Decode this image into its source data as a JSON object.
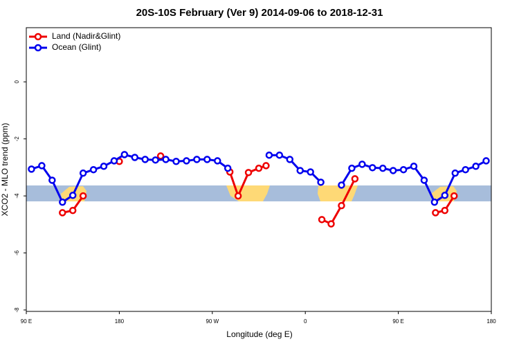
{
  "chart_data": {
    "type": "line",
    "title": "20S-10S February (Ver 9)   2014-09-06 to 2018-12-31",
    "x_label": "Longitude (deg E)",
    "y_label": "XCO2 - MLO trend (ppm)",
    "xlim": [
      90,
      540
    ],
    "ylim": [
      -8.05,
      1.9
    ],
    "xticks": [
      {
        "value": 90,
        "label": "90 E"
      },
      {
        "value": 180,
        "label": "180"
      },
      {
        "value": 270,
        "label": "90 W"
      },
      {
        "value": 360,
        "label": "0"
      },
      {
        "value": 450,
        "label": "90 E"
      },
      {
        "value": 540,
        "label": "180"
      }
    ],
    "yticks": [
      -8,
      -6,
      -4,
      -2,
      0
    ],
    "legend": "top-left",
    "series": [
      {
        "name": "Land (Nadir&Glint)",
        "color": "#ee0000",
        "x": [
          125,
          135,
          145,
          null,
          180,
          null,
          220,
          null,
          287,
          295,
          305,
          315,
          322,
          null,
          376,
          385,
          395,
          408,
          null,
          486,
          495,
          504
        ],
        "values": [
          -4.59,
          -4.51,
          -4.0,
          null,
          -2.79,
          null,
          -2.6,
          null,
          -3.16,
          -4.0,
          -3.18,
          -3.03,
          -2.94,
          null,
          -4.83,
          -4.98,
          -4.34,
          -3.4,
          null,
          -4.59,
          -4.51,
          -4.0
        ]
      },
      {
        "name": "Ocean (Glint)",
        "color": "#0000ee",
        "x": [
          95,
          105,
          115,
          125,
          135,
          145,
          155,
          165,
          175,
          185,
          195,
          205,
          215,
          225,
          235,
          245,
          255,
          265,
          275,
          285,
          null,
          325,
          335,
          345,
          355,
          365,
          375,
          null,
          395,
          405,
          415,
          425,
          435,
          445,
          455,
          465,
          475,
          485,
          495,
          505,
          515,
          525,
          535
        ],
        "values": [
          -3.06,
          -2.94,
          -3.45,
          -4.22,
          -3.98,
          -3.2,
          -3.08,
          -2.96,
          -2.77,
          -2.55,
          -2.65,
          -2.72,
          -2.74,
          -2.72,
          -2.79,
          -2.77,
          -2.72,
          -2.72,
          -2.77,
          -3.03,
          null,
          -2.57,
          -2.57,
          -2.72,
          -3.11,
          -3.16,
          -3.52,
          null,
          -3.62,
          -3.03,
          -2.89,
          -3.01,
          -3.03,
          -3.11,
          -3.08,
          -2.96,
          -3.45,
          -4.22,
          -3.98,
          -3.2,
          -3.08,
          -2.96,
          -2.77
        ]
      }
    ]
  }
}
